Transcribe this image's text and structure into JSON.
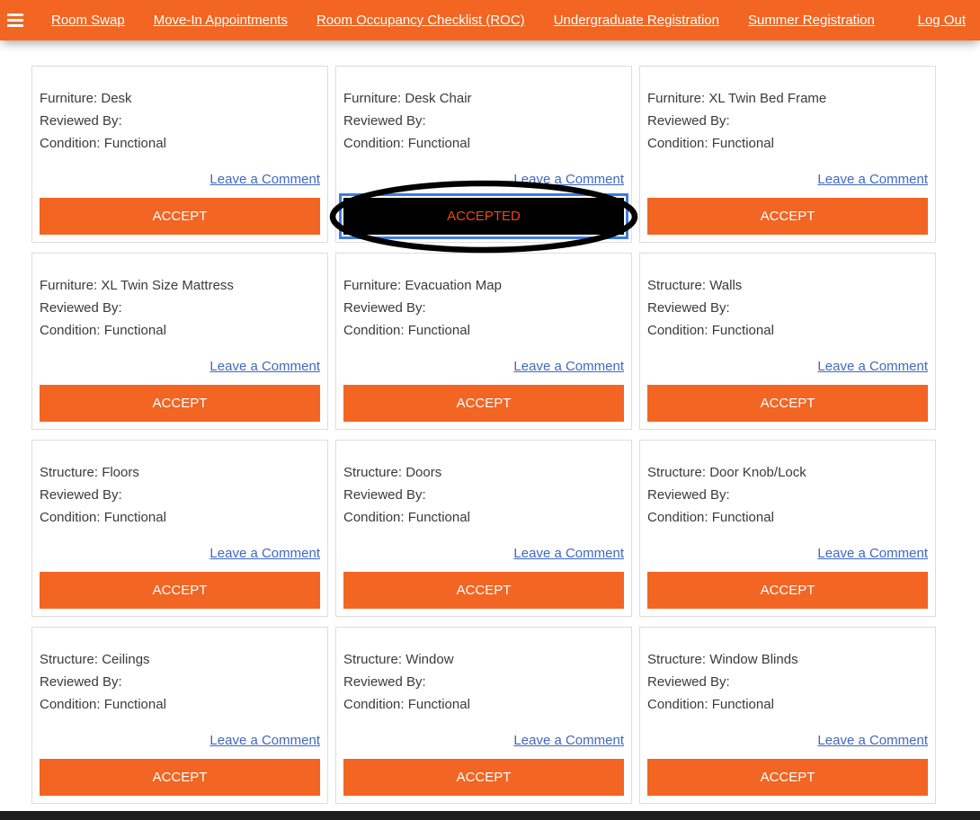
{
  "nav": {
    "menu_icon": "hamburger-icon",
    "items": [
      {
        "label": "Room Swap"
      },
      {
        "label": "Move-In Appointments"
      },
      {
        "label": "Room Occupancy Checklist (ROC)"
      },
      {
        "label": "Undergraduate Registration"
      },
      {
        "label": "Summer Registration"
      }
    ],
    "logout_label": "Log Out"
  },
  "labels": {
    "reviewed_by": "Reviewed By:",
    "comment_link": "Leave a Comment",
    "accept": "ACCEPT",
    "accepted": "ACCEPTED"
  },
  "colors": {
    "accent_orange": "#f26522",
    "link_blue": "#3e68c4",
    "focus_ring_blue": "#3d7be5",
    "accepted_button_bg": "#000000",
    "accepted_button_text": "#f04616",
    "card_border": "#dddddd",
    "footer_dark": "#1e1e1e"
  },
  "annotation": {
    "type": "ellipse-highlight",
    "target": "accepted-button",
    "color": "#000000"
  },
  "cards": [
    {
      "title": "Furniture: Desk",
      "condition": "Condition: Functional",
      "status": "accept"
    },
    {
      "title": "Furniture: Desk Chair",
      "condition": "Condition: Functional",
      "status": "accepted"
    },
    {
      "title": "Furniture: XL Twin Bed Frame",
      "condition": "Condition: Functional",
      "status": "accept"
    },
    {
      "title": "Furniture: XL Twin Size Mattress",
      "condition": "Condition: Functional",
      "status": "accept"
    },
    {
      "title": "Furniture: Evacuation Map",
      "condition": "Condition: Functional",
      "status": "accept"
    },
    {
      "title": "Structure: Walls",
      "condition": "Condition: Functional",
      "status": "accept"
    },
    {
      "title": "Structure: Floors",
      "condition": "Condition: Functional",
      "status": "accept"
    },
    {
      "title": "Structure: Doors",
      "condition": "Condition: Functional",
      "status": "accept"
    },
    {
      "title": "Structure: Door Knob/Lock",
      "condition": "Condition: Functional",
      "status": "accept"
    },
    {
      "title": "Structure: Ceilings",
      "condition": "Condition: Functional",
      "status": "accept"
    },
    {
      "title": "Structure: Window",
      "condition": "Condition: Functional",
      "status": "accept"
    },
    {
      "title": "Structure: Window Blinds",
      "condition": "Condition: Functional",
      "status": "accept"
    }
  ]
}
